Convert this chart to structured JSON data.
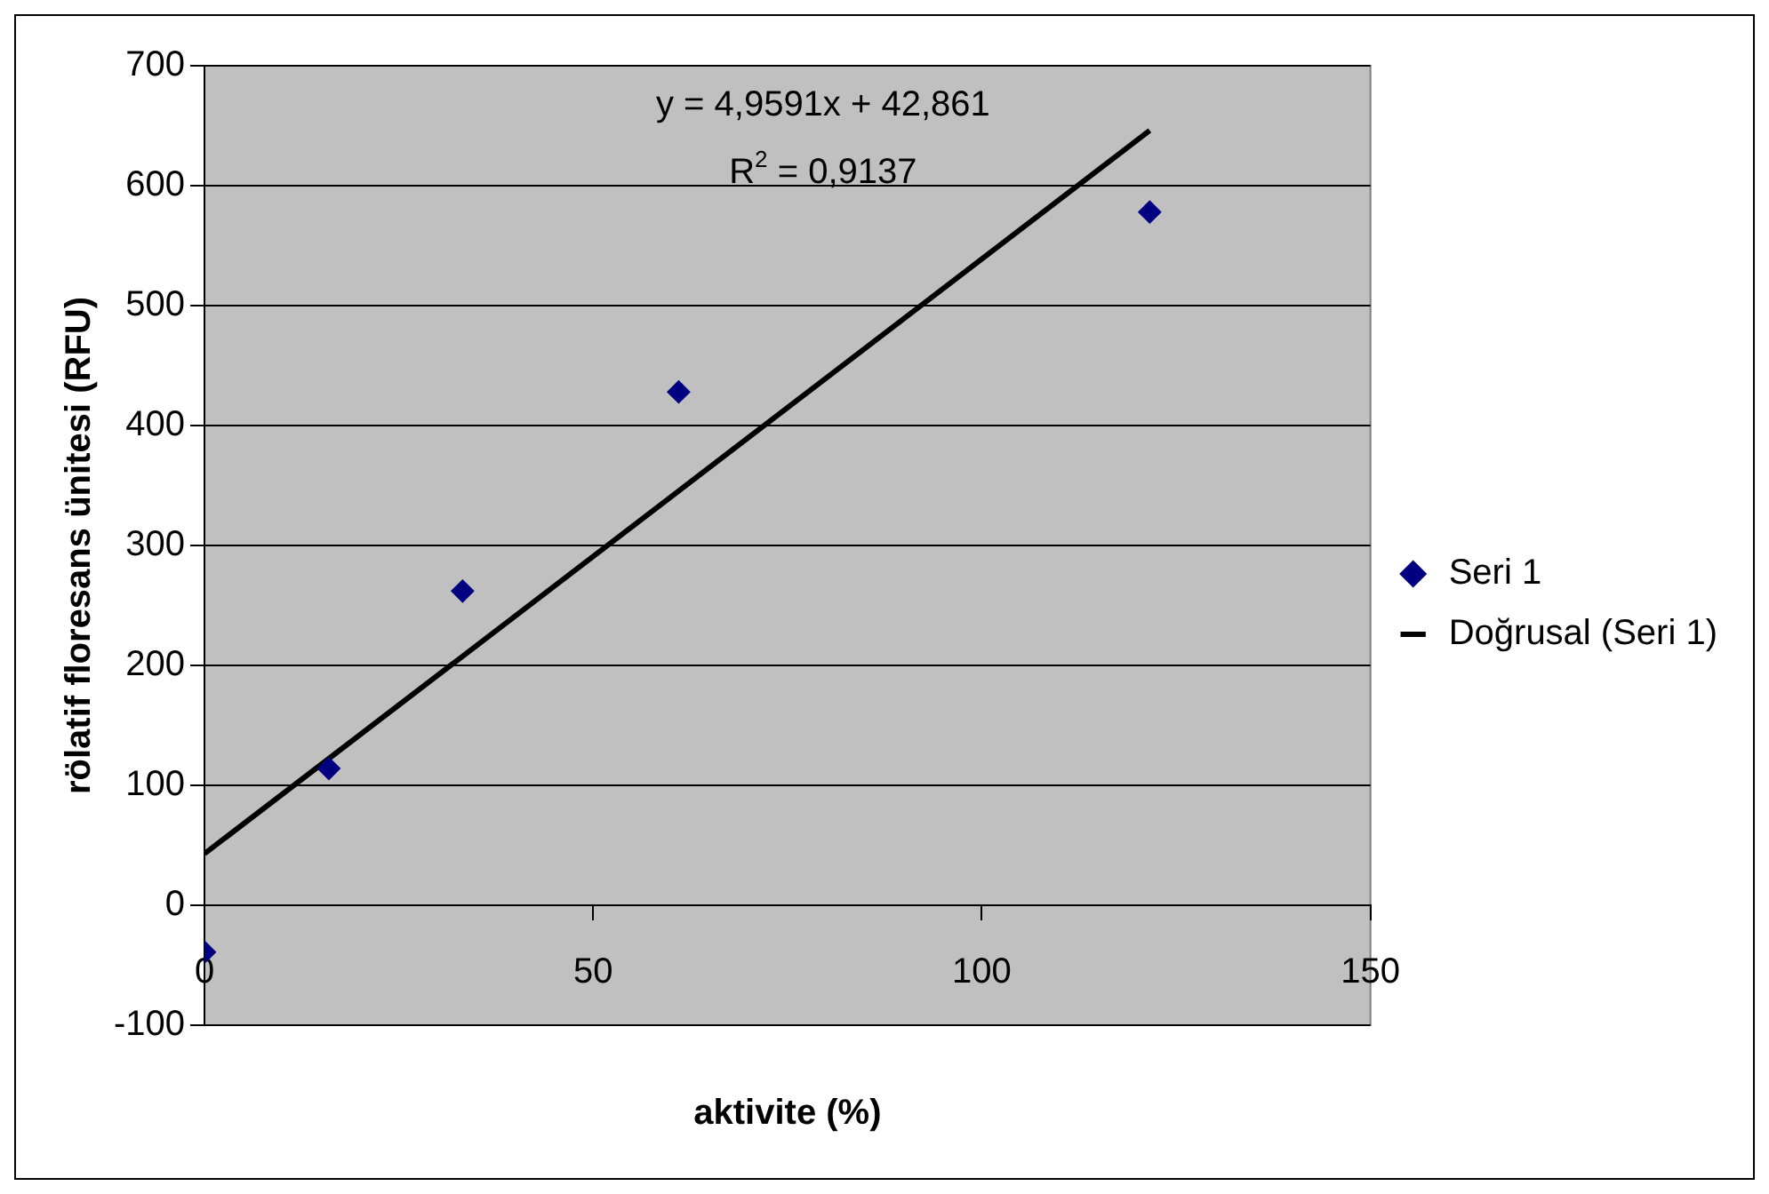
{
  "chart_data": {
    "type": "scatter",
    "xlabel": "aktivite (%)",
    "ylabel": "rölatif floresans ünitesi (RFU)",
    "series": [
      {
        "name": "Seri 1",
        "color": "#000080",
        "marker": "diamond",
        "x": [
          0,
          16,
          33.2,
          61,
          121.6
        ],
        "values": [
          -39,
          114,
          262,
          428,
          578
        ]
      },
      {
        "name": "Doğrusal (Seri 1)",
        "type": "line",
        "color": "#000000",
        "marker": "none",
        "line_style": "solid",
        "x": [
          0,
          121.6
        ],
        "values": [
          43,
          646
        ]
      }
    ],
    "annotations": [
      "y = 4,9591x + 42,861",
      "R$^{2}$ = 0,9137"
    ],
    "xlim": [
      0,
      150
    ],
    "xticks": [
      0,
      50,
      100,
      150
    ],
    "ylim": [
      -100,
      700
    ],
    "yticks": [
      -100,
      0,
      100,
      200,
      300,
      400,
      500,
      600,
      700
    ],
    "grid": "y",
    "legend": "right"
  }
}
